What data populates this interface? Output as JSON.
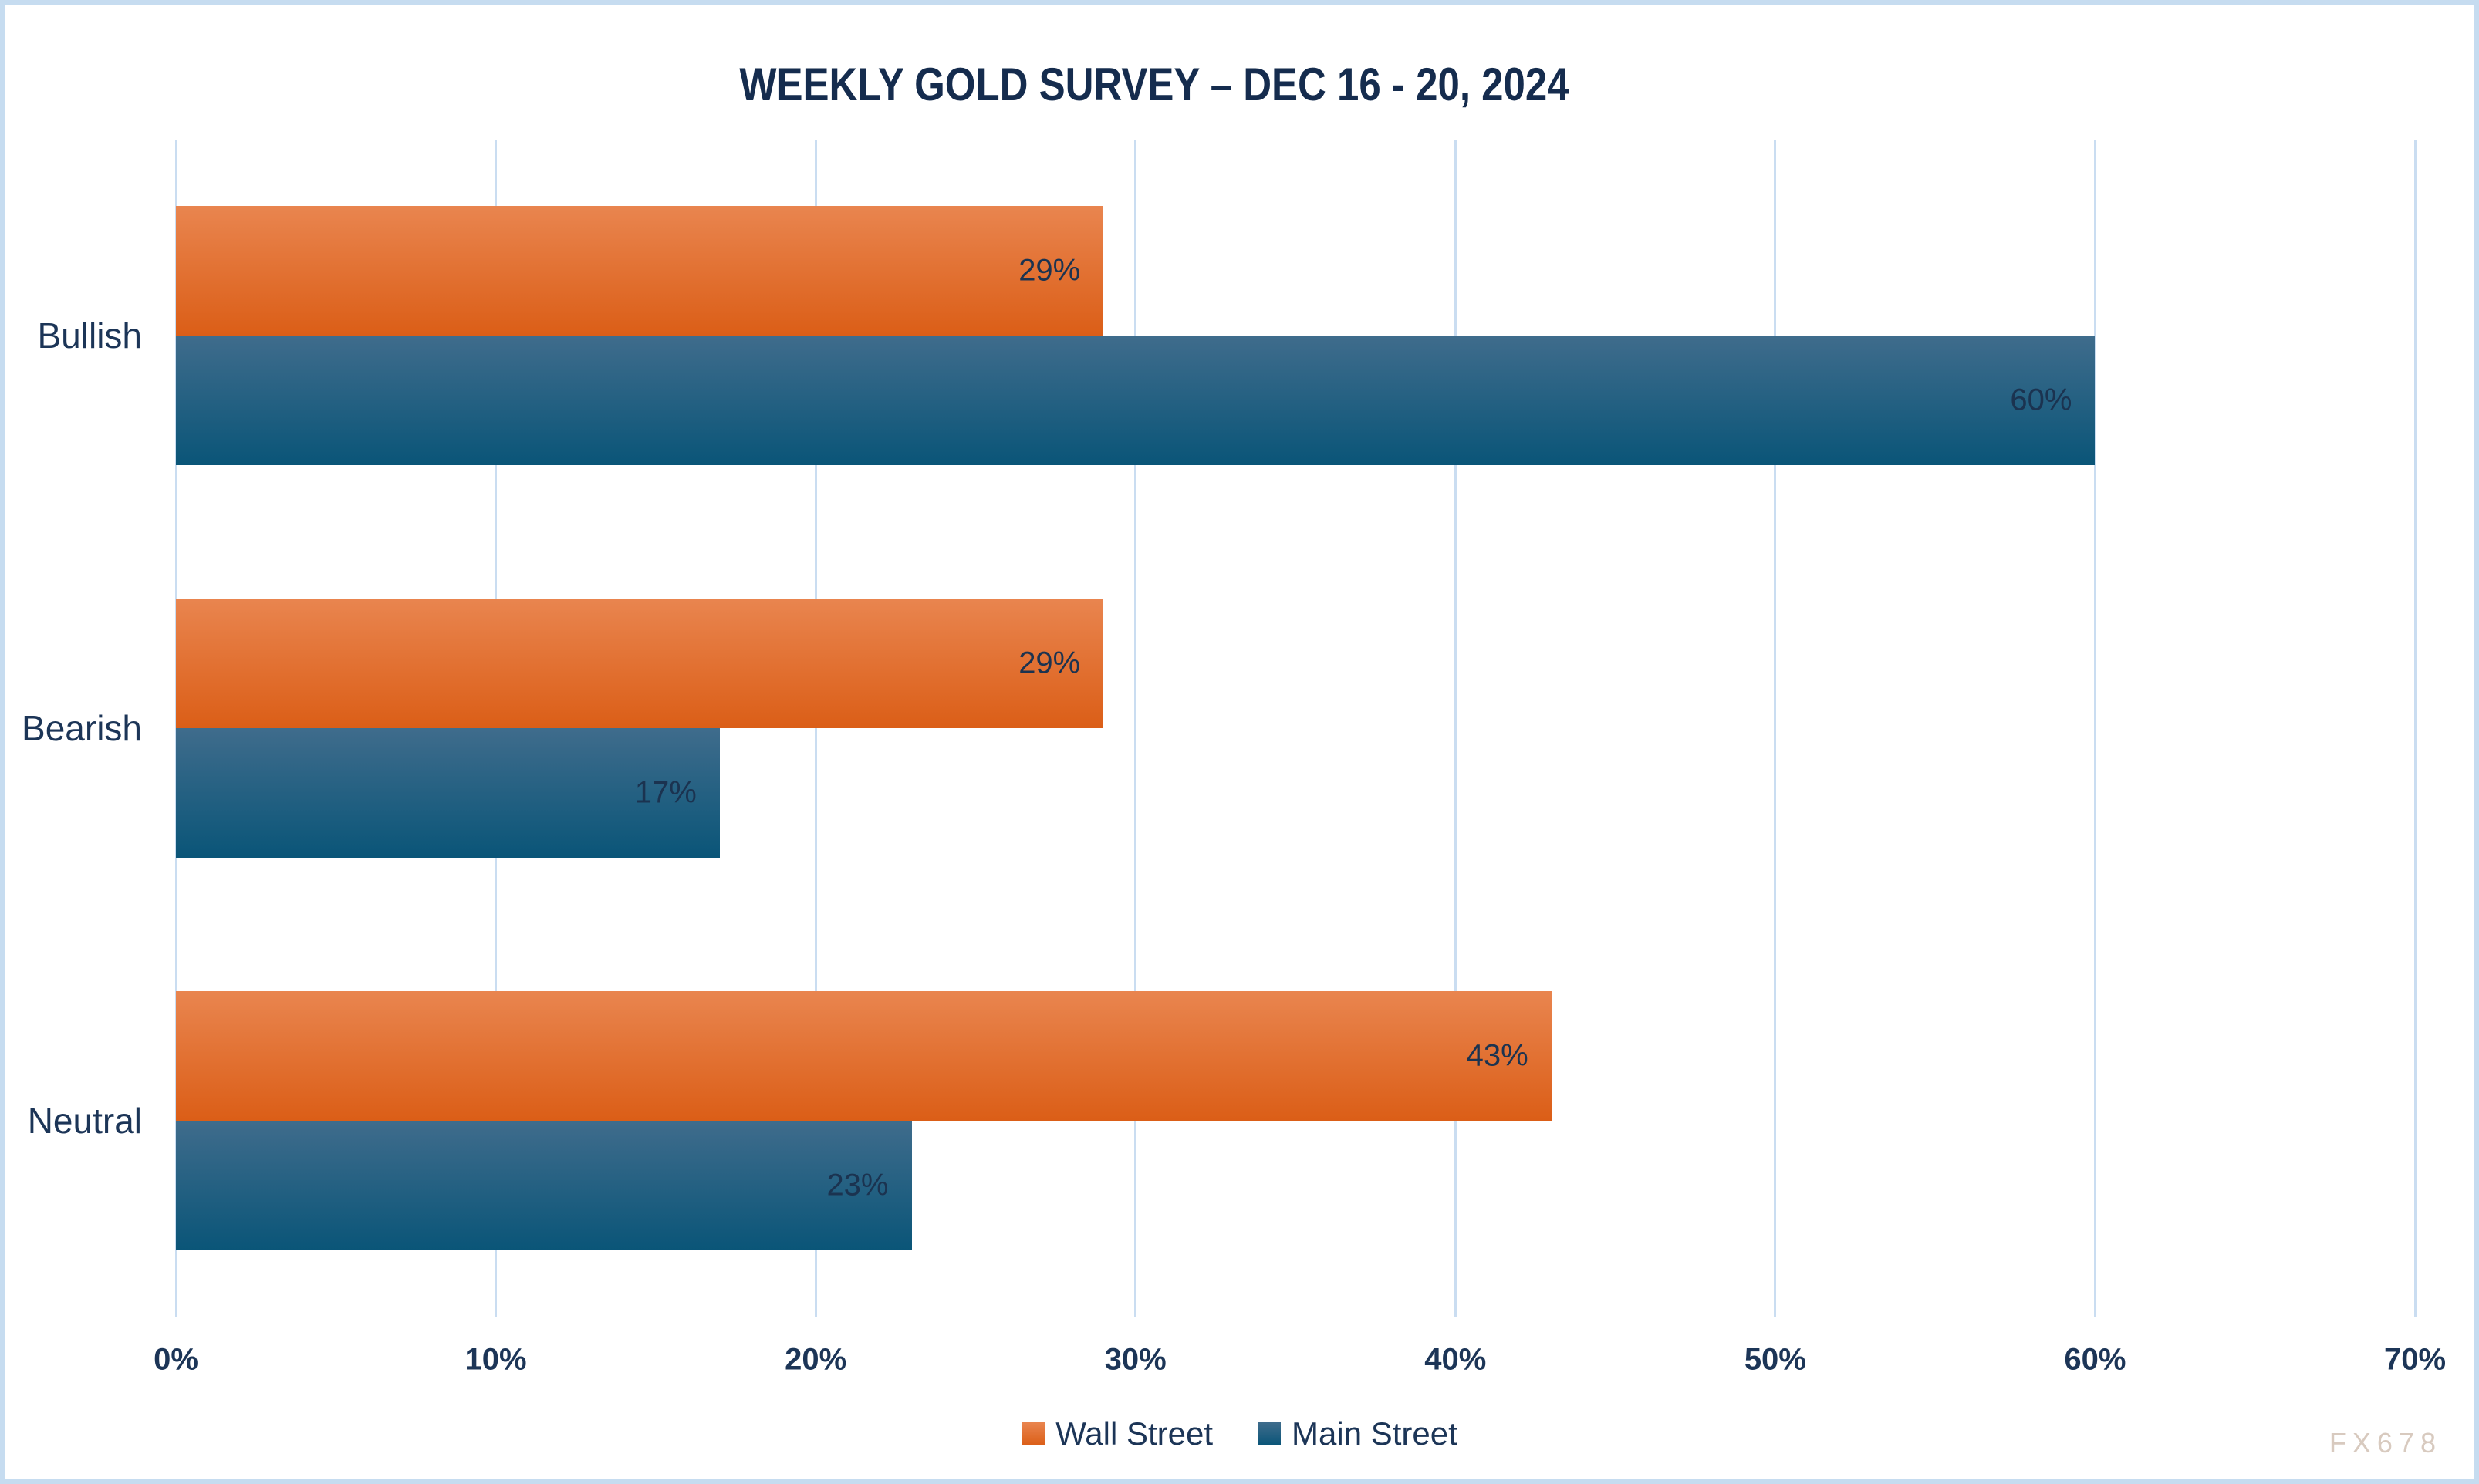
{
  "chart_data": {
    "type": "bar",
    "orientation": "horizontal",
    "title": "WEEKLY GOLD SURVEY – DEC 16 - 20, 2024",
    "categories": [
      "Bullish",
      "Bearish",
      "Neutral"
    ],
    "series": [
      {
        "name": "Wall Street",
        "values": [
          29,
          29,
          43
        ],
        "color_top": "#E9854F",
        "color_bottom": "#DB5E17"
      },
      {
        "name": "Main Street",
        "values": [
          60,
          17,
          23
        ],
        "color_top": "#3F6C8C",
        "color_bottom": "#0A5578"
      }
    ],
    "value_suffix": "%",
    "xlim": [
      0,
      70
    ],
    "x_ticks": [
      "0%",
      "10%",
      "20%",
      "30%",
      "40%",
      "50%",
      "60%",
      "70%"
    ],
    "grid": true,
    "data_label_position": "inside-end",
    "legend_position": "bottom"
  },
  "watermark": "FX678",
  "colors": {
    "background": "#FFFFFF",
    "border": "#C6DCF0",
    "gridline": "#CADDF1",
    "title_text": "#152C4E",
    "label_text": "#1C3557",
    "watermark_text": "#D8CABF"
  }
}
